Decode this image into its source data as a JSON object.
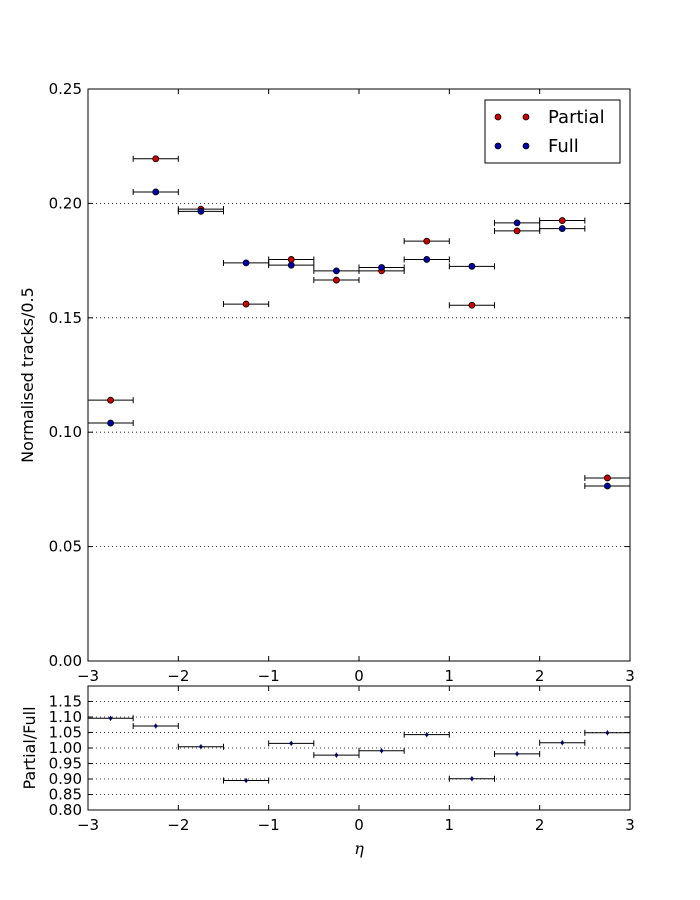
{
  "chart_data": [
    {
      "type": "scatter",
      "title": "",
      "xlabel": "",
      "ylabel": "Normalised tracks/0.5",
      "xlim": [
        -3,
        3
      ],
      "ylim": [
        0,
        0.25
      ],
      "xticks": [
        "−3",
        "−2",
        "−1",
        "0",
        "1",
        "2",
        "3"
      ],
      "yticks": [
        "0.00",
        "0.05",
        "0.10",
        "0.15",
        "0.20",
        "0.25"
      ],
      "grid": "horizontal dotted",
      "legend_position": "top-right",
      "x": [
        -2.75,
        -2.25,
        -1.75,
        -1.25,
        -0.75,
        -0.25,
        0.25,
        0.75,
        1.25,
        1.75,
        2.25,
        2.75
      ],
      "x_halfwidth": 0.25,
      "series": [
        {
          "name": "Partial",
          "color": "#cc0000",
          "values": [
            0.114,
            0.2195,
            0.1975,
            0.156,
            0.1755,
            0.1665,
            0.1705,
            0.1835,
            0.1555,
            0.188,
            0.1925,
            0.08
          ]
        },
        {
          "name": "Full",
          "color": "#0000aa",
          "values": [
            0.104,
            0.205,
            0.1965,
            0.174,
            0.173,
            0.1705,
            0.172,
            0.1755,
            0.1725,
            0.1915,
            0.189,
            0.0765
          ]
        }
      ]
    },
    {
      "type": "scatter",
      "title": "",
      "xlabel": "η",
      "ylabel": "Partial/Full",
      "xlim": [
        -3,
        3
      ],
      "ylim": [
        0.8,
        1.2
      ],
      "xticks": [
        "−3",
        "−2",
        "−1",
        "0",
        "1",
        "2",
        "3"
      ],
      "yticks": [
        "0.80",
        "0.85",
        "0.90",
        "0.95",
        "1.00",
        "1.05",
        "1.10",
        "1.15"
      ],
      "grid": "horizontal dotted",
      "x": [
        -2.75,
        -2.25,
        -1.75,
        -1.25,
        -0.75,
        -0.25,
        0.25,
        0.75,
        1.25,
        1.75,
        2.25,
        2.75
      ],
      "x_halfwidth": 0.25,
      "series": [
        {
          "color": "#000066",
          "values": [
            1.096,
            1.071,
            1.004,
            0.895,
            1.015,
            0.977,
            0.991,
            1.043,
            0.901,
            0.981,
            1.017,
            1.049
          ]
        }
      ]
    }
  ]
}
